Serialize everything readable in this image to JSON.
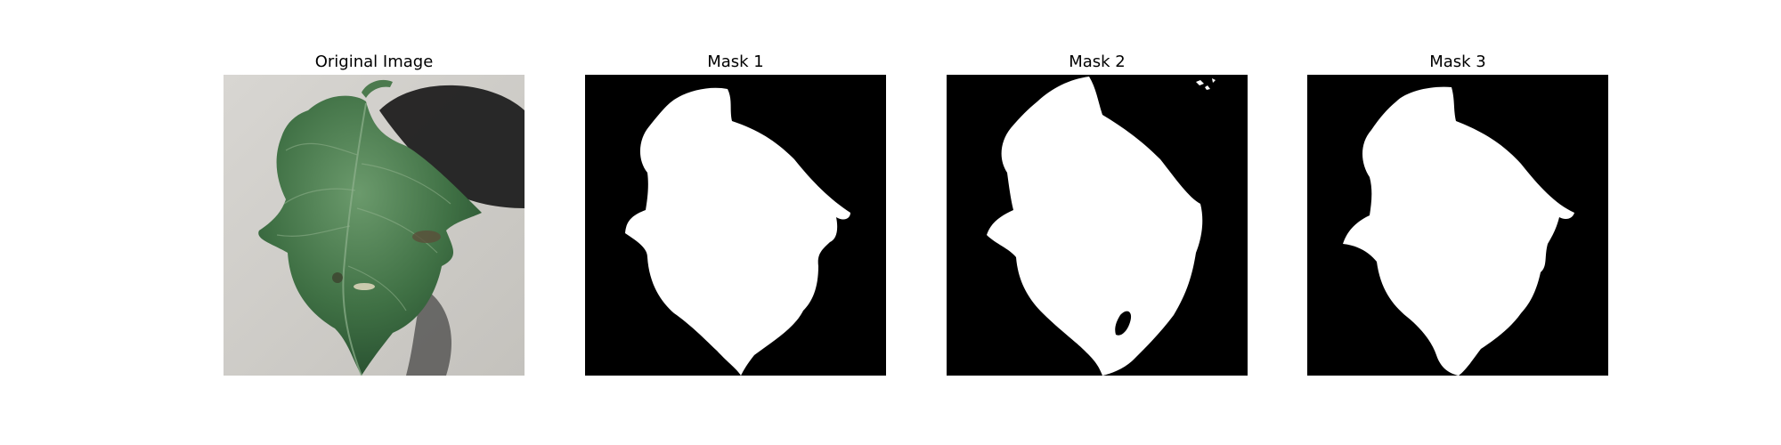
{
  "figure": {
    "panels": [
      {
        "title": "Original Image"
      },
      {
        "title": "Mask 1"
      },
      {
        "title": "Mask 2"
      },
      {
        "title": "Mask 3"
      }
    ],
    "colors": {
      "mask_background": "#000000",
      "mask_foreground": "#ffffff",
      "photo_background": "#cfcdc9",
      "leaf_light": "#5a8a5e",
      "leaf_dark": "#2c5a33",
      "shadow": "#1c1c1c"
    }
  }
}
